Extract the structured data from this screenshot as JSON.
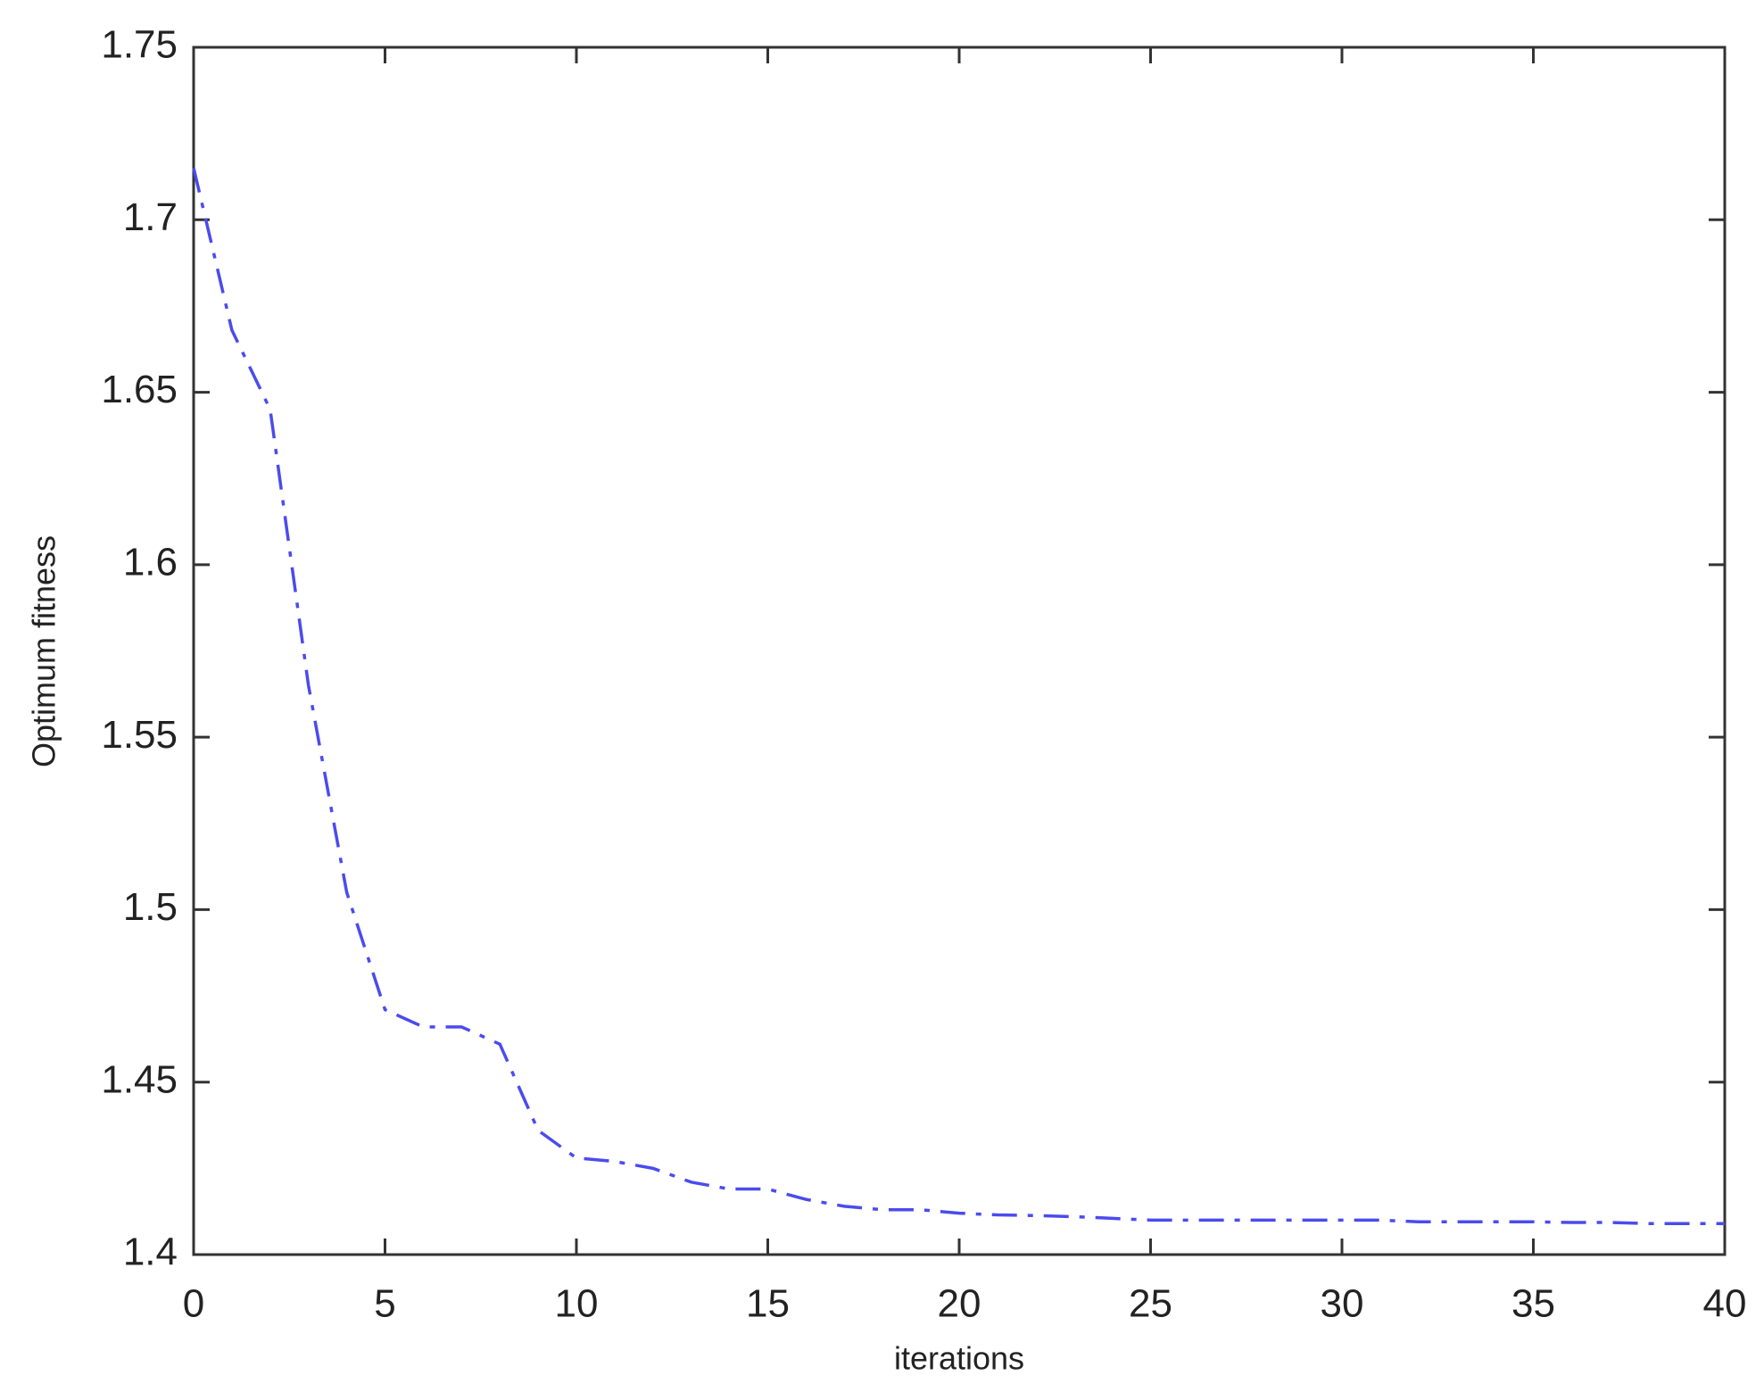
{
  "chart_data": {
    "type": "line",
    "xlabel": "iterations",
    "ylabel": "Optimum fitness",
    "x": [
      0,
      1,
      2,
      3,
      4,
      5,
      6,
      7,
      8,
      9,
      10,
      11,
      12,
      13,
      14,
      15,
      16,
      17,
      18,
      19,
      20,
      21,
      22,
      23,
      24,
      25,
      26,
      27,
      28,
      29,
      30,
      31,
      32,
      33,
      34,
      35,
      36,
      37,
      38,
      39,
      40
    ],
    "values": [
      1.715,
      1.668,
      1.645,
      1.565,
      1.505,
      1.471,
      1.466,
      1.466,
      1.461,
      1.436,
      1.428,
      1.427,
      1.425,
      1.421,
      1.419,
      1.419,
      1.416,
      1.414,
      1.413,
      1.413,
      1.412,
      1.4115,
      1.4113,
      1.411,
      1.4105,
      1.41,
      1.41,
      1.41,
      1.41,
      1.41,
      1.41,
      1.41,
      1.4095,
      1.4095,
      1.4095,
      1.4095,
      1.4093,
      1.4093,
      1.409,
      1.409,
      1.409
    ],
    "color": "#4b4bef",
    "line_style": "dashdot",
    "xlim": [
      0,
      40
    ],
    "xticks": [
      0,
      5,
      10,
      15,
      20,
      25,
      30,
      35,
      40
    ],
    "ylim": [
      1.4,
      1.75
    ],
    "yticks": [
      1.4,
      1.45,
      1.5,
      1.55,
      1.6,
      1.65,
      1.7,
      1.75
    ]
  }
}
